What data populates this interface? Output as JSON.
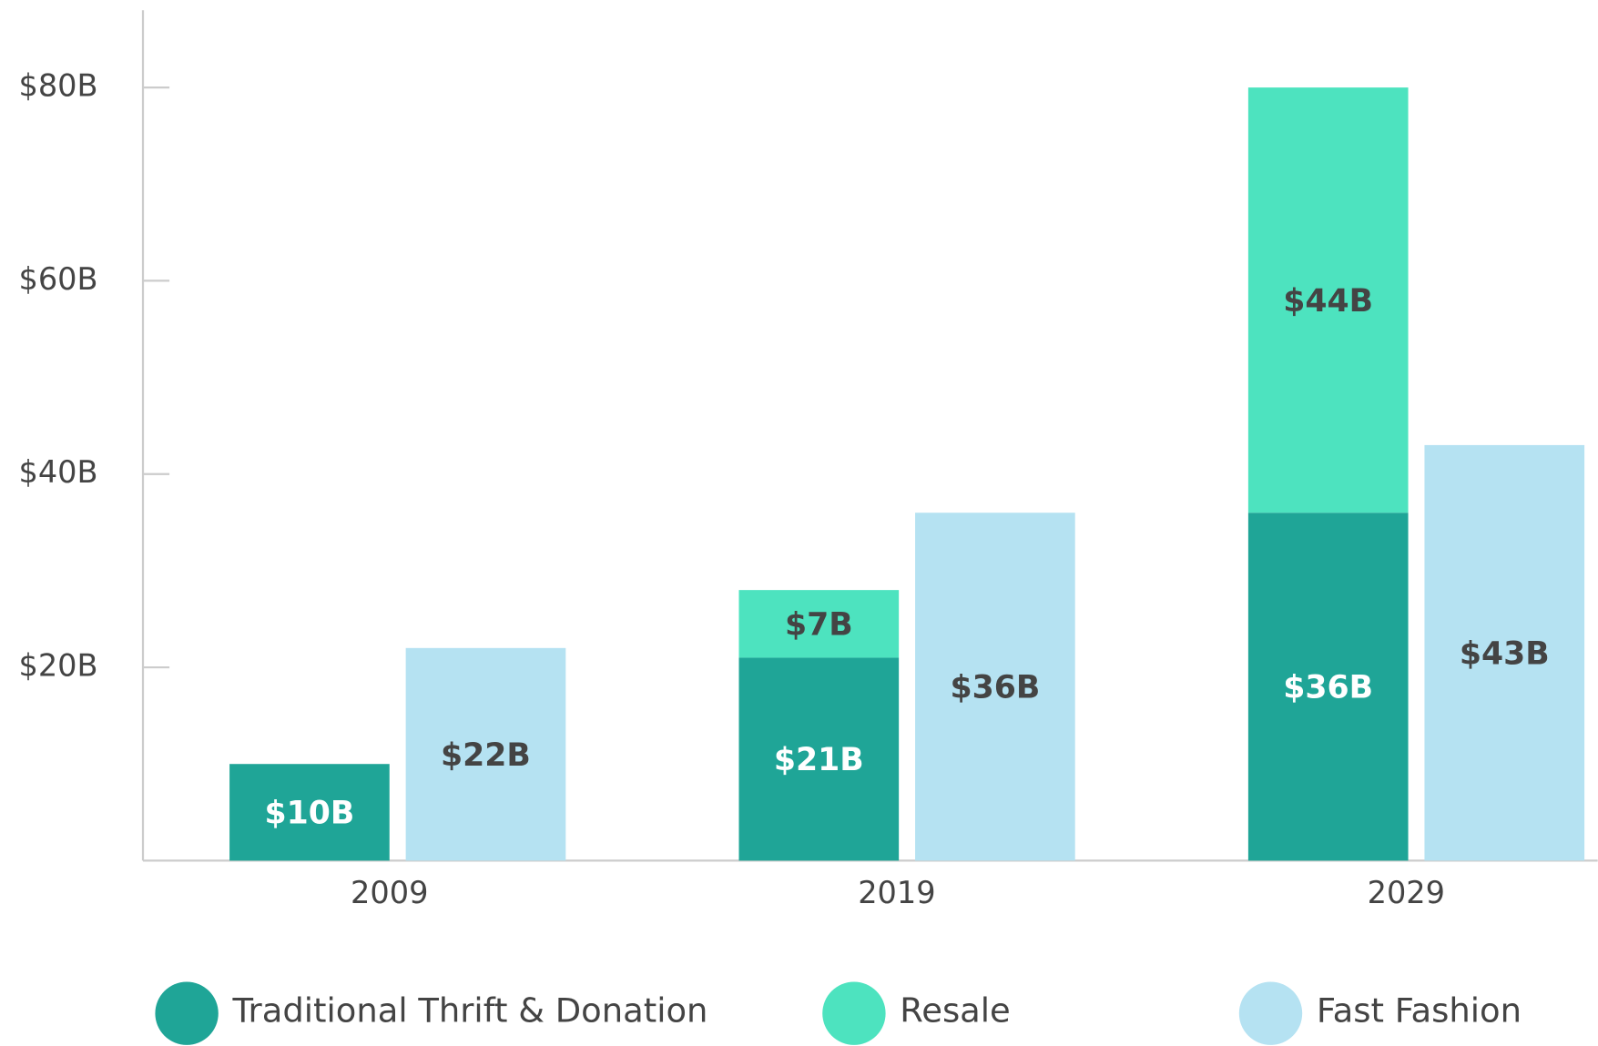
{
  "chart_data": {
    "type": "bar",
    "categories": [
      "2009",
      "2019",
      "2029"
    ],
    "series": [
      {
        "name": "Traditional Thrift & Donation",
        "color": "#1fa597",
        "stack": "a",
        "label_color": "#ffffff",
        "values": [
          10,
          21,
          36
        ],
        "value_labels": [
          "$10B",
          "$21B",
          "$36B"
        ]
      },
      {
        "name": "Resale",
        "color": "#4de3bf",
        "stack": "a",
        "label_color": "#444444",
        "values": [
          null,
          7,
          44
        ],
        "value_labels": [
          null,
          "$7B",
          "$44B"
        ]
      },
      {
        "name": "Fast Fashion",
        "color": "#b5e2f2",
        "stack": "b",
        "label_color": "#444444",
        "values": [
          22,
          36,
          43
        ],
        "value_labels": [
          "$22B",
          "$36B",
          "$43B"
        ]
      }
    ],
    "ylim": [
      0,
      88
    ],
    "yticks": [
      {
        "value": 20,
        "label": "$20B"
      },
      {
        "value": 40,
        "label": "$40B"
      },
      {
        "value": 60,
        "label": "$60B"
      },
      {
        "value": 80,
        "label": "$80B"
      }
    ],
    "legend": "bottom"
  }
}
